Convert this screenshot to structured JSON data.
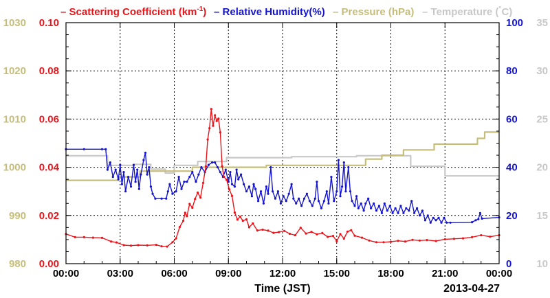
{
  "chart_data": {
    "type": "line",
    "legend": {
      "position": "top",
      "items": [
        {
          "text": "Scattering Coefficient (km",
          "sup": "-1",
          "tail": ")",
          "color": "#e8141a"
        },
        {
          "text": "Relative Humidity(%)",
          "color": "#1414d2"
        },
        {
          "text": "Pressure (hPa)",
          "color": "#c6bd78"
        },
        {
          "text": "Temperature (",
          "sup": "°",
          "tail": "C)",
          "color": "#c8c8c8"
        }
      ]
    },
    "xlabel": "Time (JST)",
    "date_label": "2013-04-27",
    "x_range_hours": [
      0,
      24
    ],
    "x_ticks": [
      {
        "h": 0,
        "label": "00:00"
      },
      {
        "h": 3,
        "label": "03:00"
      },
      {
        "h": 6,
        "label": "06:00"
      },
      {
        "h": 9,
        "label": "09:00"
      },
      {
        "h": 12,
        "label": "12:00"
      },
      {
        "h": 15,
        "label": "15:00"
      },
      {
        "h": 18,
        "label": "18:00"
      },
      {
        "h": 21,
        "label": "21:00"
      },
      {
        "h": 24,
        "label": "00:00"
      }
    ],
    "grid": true,
    "axes": {
      "pressure": {
        "side": "left-outer",
        "ylim": [
          980,
          1030
        ],
        "ticks": [
          "980",
          "990",
          "1000",
          "1010",
          "1020",
          "1030"
        ],
        "color": "#c6bd78"
      },
      "scattering": {
        "side": "left-inner",
        "ylim": [
          0,
          0.1
        ],
        "ticks": [
          "0.00",
          "0.02",
          "0.04",
          "0.06",
          "0.08",
          "0.10"
        ],
        "color": "#e8141a"
      },
      "humidity": {
        "side": "right-inner",
        "ylim": [
          0,
          100
        ],
        "ticks": [
          "0",
          "20",
          "40",
          "60",
          "80",
          "100"
        ],
        "color": "#1414d2"
      },
      "temperature": {
        "side": "right-outer",
        "ylim": [
          10,
          35
        ],
        "ticks": [
          "10",
          "15",
          "20",
          "25",
          "30",
          "35"
        ],
        "color": "#c8c8c8"
      }
    },
    "series": [
      {
        "name": "Temperature",
        "axis": "temperature",
        "color": "#c8c8c8",
        "step": true,
        "points": [
          [
            0,
            21.2
          ],
          [
            2.2,
            21.2
          ],
          [
            2.3,
            20.2
          ],
          [
            3.7,
            20.2
          ],
          [
            3.8,
            20.3
          ],
          [
            4.6,
            20.3
          ],
          [
            4.7,
            19.8
          ],
          [
            5.4,
            19.8
          ],
          [
            5.5,
            19.4
          ],
          [
            5.9,
            19.4
          ],
          [
            6.0,
            20.2
          ],
          [
            7.2,
            20.2
          ],
          [
            7.3,
            20.6
          ],
          [
            8.8,
            20.6
          ],
          [
            8.9,
            21.0
          ],
          [
            12.4,
            21.0
          ],
          [
            12.5,
            21.1
          ],
          [
            16.0,
            21.1
          ],
          [
            16.1,
            21.2
          ],
          [
            19.0,
            21.2
          ],
          [
            19.1,
            20.1
          ],
          [
            20.9,
            20.1
          ],
          [
            21.0,
            19.1
          ],
          [
            24,
            19.1
          ]
        ]
      },
      {
        "name": "Pressure",
        "axis": "pressure",
        "color": "#c6bd78",
        "step": true,
        "points": [
          [
            0,
            997.3
          ],
          [
            2.8,
            997.3
          ],
          [
            2.9,
            998.0
          ],
          [
            4.0,
            998.0
          ],
          [
            4.1,
            999.2
          ],
          [
            6.9,
            999.2
          ],
          [
            7.0,
            1000.0
          ],
          [
            11.0,
            1000.0
          ],
          [
            11.1,
            1000.4
          ],
          [
            16.5,
            1000.4
          ],
          [
            16.6,
            1001.7
          ],
          [
            17.4,
            1001.7
          ],
          [
            17.5,
            1002.5
          ],
          [
            18.6,
            1002.5
          ],
          [
            18.7,
            1003.6
          ],
          [
            20.3,
            1003.6
          ],
          [
            20.4,
            1004.8
          ],
          [
            22.7,
            1004.8
          ],
          [
            22.8,
            1006.0
          ],
          [
            23.1,
            1006.0
          ],
          [
            23.2,
            1007.3
          ],
          [
            24,
            1007.3
          ]
        ]
      },
      {
        "name": "Relative Humidity",
        "axis": "humidity",
        "color": "#1414d2",
        "step": false,
        "points": [
          [
            0,
            47.5
          ],
          [
            1,
            47.5
          ],
          [
            2.0,
            47.5
          ],
          [
            2.2,
            47.5
          ],
          [
            2.3,
            39
          ],
          [
            2.45,
            42
          ],
          [
            2.6,
            36
          ],
          [
            2.75,
            39
          ],
          [
            2.9,
            35
          ],
          [
            3.0,
            41
          ],
          [
            3.1,
            33
          ],
          [
            3.2,
            38
          ],
          [
            3.3,
            30
          ],
          [
            3.45,
            36
          ],
          [
            3.6,
            32
          ],
          [
            3.75,
            41
          ],
          [
            3.85,
            34
          ],
          [
            3.95,
            39
          ],
          [
            4.05,
            31
          ],
          [
            4.15,
            37
          ],
          [
            4.3,
            43
          ],
          [
            4.4,
            46
          ],
          [
            4.5,
            37
          ],
          [
            4.6,
            40
          ],
          [
            4.7,
            32
          ],
          [
            4.8,
            29
          ],
          [
            4.95,
            27
          ],
          [
            5.3,
            27
          ],
          [
            5.55,
            27
          ],
          [
            5.65,
            30
          ],
          [
            5.75,
            33
          ],
          [
            5.9,
            29
          ],
          [
            6.1,
            30
          ],
          [
            6.25,
            36
          ],
          [
            6.4,
            31
          ],
          [
            6.55,
            34
          ],
          [
            6.7,
            34
          ],
          [
            6.85,
            36
          ],
          [
            7.0,
            38
          ],
          [
            7.2,
            34
          ],
          [
            7.35,
            37
          ],
          [
            7.5,
            40
          ],
          [
            7.7,
            38
          ],
          [
            7.9,
            41
          ],
          [
            8.1,
            42
          ],
          [
            8.25,
            42
          ],
          [
            8.4,
            40
          ],
          [
            8.55,
            38
          ],
          [
            8.7,
            36
          ],
          [
            8.85,
            39
          ],
          [
            9.0,
            34
          ],
          [
            9.1,
            38
          ],
          [
            9.2,
            33
          ],
          [
            9.35,
            32
          ],
          [
            9.45,
            39
          ],
          [
            9.55,
            35
          ],
          [
            9.7,
            37
          ],
          [
            9.85,
            33
          ],
          [
            10.0,
            30
          ],
          [
            10.15,
            32
          ],
          [
            10.3,
            28
          ],
          [
            10.4,
            33
          ],
          [
            10.5,
            31
          ],
          [
            10.65,
            26
          ],
          [
            10.8,
            30
          ],
          [
            10.95,
            25
          ],
          [
            11.1,
            32
          ],
          [
            11.2,
            29
          ],
          [
            11.35,
            40
          ],
          [
            11.45,
            30
          ],
          [
            11.6,
            27
          ],
          [
            11.75,
            30
          ],
          [
            11.9,
            25
          ],
          [
            12.05,
            28
          ],
          [
            12.2,
            26
          ],
          [
            12.35,
            29
          ],
          [
            12.5,
            33
          ],
          [
            12.6,
            27
          ],
          [
            12.75,
            25
          ],
          [
            12.9,
            27
          ],
          [
            13.05,
            24
          ],
          [
            13.2,
            27
          ],
          [
            13.35,
            29
          ],
          [
            13.5,
            26
          ],
          [
            13.65,
            24
          ],
          [
            13.8,
            27
          ],
          [
            13.9,
            34
          ],
          [
            14.0,
            26
          ],
          [
            14.15,
            23
          ],
          [
            14.3,
            26
          ],
          [
            14.45,
            30
          ],
          [
            14.55,
            25
          ],
          [
            14.7,
            36
          ],
          [
            14.85,
            26
          ],
          [
            15.0,
            30
          ],
          [
            15.1,
            43
          ],
          [
            15.2,
            28
          ],
          [
            15.3,
            32
          ],
          [
            15.4,
            42
          ],
          [
            15.5,
            30
          ],
          [
            15.65,
            40
          ],
          [
            15.75,
            30
          ],
          [
            15.85,
            26
          ],
          [
            16.0,
            24
          ],
          [
            16.1,
            28
          ],
          [
            16.2,
            23
          ],
          [
            16.35,
            25
          ],
          [
            16.5,
            22
          ],
          [
            16.6,
            25
          ],
          [
            16.75,
            27
          ],
          [
            16.9,
            23
          ],
          [
            17.05,
            25
          ],
          [
            17.2,
            22
          ],
          [
            17.35,
            24
          ],
          [
            17.5,
            21
          ],
          [
            17.65,
            25
          ],
          [
            17.8,
            22
          ],
          [
            17.95,
            24
          ],
          [
            18.1,
            21
          ],
          [
            18.25,
            23
          ],
          [
            18.4,
            21
          ],
          [
            18.55,
            24
          ],
          [
            18.7,
            21
          ],
          [
            18.85,
            23
          ],
          [
            19.0,
            22
          ],
          [
            19.15,
            26
          ],
          [
            19.3,
            21
          ],
          [
            19.45,
            23
          ],
          [
            19.6,
            20
          ],
          [
            19.75,
            22
          ],
          [
            19.9,
            18
          ],
          [
            20.05,
            20
          ],
          [
            20.2,
            17
          ],
          [
            20.35,
            19
          ],
          [
            20.5,
            18
          ],
          [
            20.65,
            19
          ],
          [
            20.8,
            17
          ],
          [
            20.95,
            19
          ],
          [
            21.1,
            17
          ],
          [
            21.3,
            17
          ],
          [
            22.5,
            17.2
          ],
          [
            22.7,
            18
          ],
          [
            22.85,
            18.5
          ],
          [
            22.95,
            21
          ],
          [
            23.05,
            18.7
          ],
          [
            24,
            19.2
          ]
        ]
      },
      {
        "name": "Scattering Coefficient",
        "axis": "scattering",
        "color": "#e8141a",
        "step": false,
        "points": [
          [
            0,
            0.0123
          ],
          [
            0.5,
            0.011
          ],
          [
            1.0,
            0.011
          ],
          [
            1.5,
            0.0108
          ],
          [
            2.0,
            0.0107
          ],
          [
            2.5,
            0.0092
          ],
          [
            2.8,
            0.0088
          ],
          [
            3.2,
            0.0077
          ],
          [
            3.6,
            0.0075
          ],
          [
            4.0,
            0.0077
          ],
          [
            4.5,
            0.0076
          ],
          [
            5.0,
            0.0078
          ],
          [
            5.3,
            0.0072
          ],
          [
            5.6,
            0.0071
          ],
          [
            5.9,
            0.0089
          ],
          [
            6.1,
            0.0105
          ],
          [
            6.3,
            0.0152
          ],
          [
            6.5,
            0.0178
          ],
          [
            6.6,
            0.0211
          ],
          [
            6.7,
            0.0197
          ],
          [
            6.85,
            0.0248
          ],
          [
            7.0,
            0.0232
          ],
          [
            7.15,
            0.0268
          ],
          [
            7.3,
            0.0295
          ],
          [
            7.45,
            0.0274
          ],
          [
            7.6,
            0.0335
          ],
          [
            7.75,
            0.0404
          ],
          [
            7.85,
            0.0515
          ],
          [
            7.95,
            0.0562
          ],
          [
            8.05,
            0.0642
          ],
          [
            8.15,
            0.0572
          ],
          [
            8.25,
            0.0616
          ],
          [
            8.35,
            0.0592
          ],
          [
            8.45,
            0.0602
          ],
          [
            8.55,
            0.0545
          ],
          [
            8.65,
            0.0404
          ],
          [
            8.75,
            0.0361
          ],
          [
            8.9,
            0.0348
          ],
          [
            9.05,
            0.0308
          ],
          [
            9.2,
            0.0281
          ],
          [
            9.35,
            0.0212
          ],
          [
            9.5,
            0.0183
          ],
          [
            9.65,
            0.0195
          ],
          [
            9.8,
            0.0178
          ],
          [
            10.0,
            0.0184
          ],
          [
            10.15,
            0.0151
          ],
          [
            10.35,
            0.0167
          ],
          [
            10.6,
            0.0138
          ],
          [
            10.9,
            0.0141
          ],
          [
            11.2,
            0.0137
          ],
          [
            11.5,
            0.0128
          ],
          [
            11.8,
            0.0131
          ],
          [
            12.1,
            0.0136
          ],
          [
            12.4,
            0.0124
          ],
          [
            12.7,
            0.0118
          ],
          [
            13.0,
            0.0149
          ],
          [
            13.3,
            0.0125
          ],
          [
            13.6,
            0.0132
          ],
          [
            13.9,
            0.0122
          ],
          [
            14.2,
            0.0127
          ],
          [
            14.5,
            0.0111
          ],
          [
            14.8,
            0.0115
          ],
          [
            15.0,
            0.0093
          ],
          [
            15.2,
            0.0123
          ],
          [
            15.4,
            0.0104
          ],
          [
            15.6,
            0.0133
          ],
          [
            15.8,
            0.0139
          ],
          [
            16.0,
            0.0116
          ],
          [
            16.4,
            0.0108
          ],
          [
            16.8,
            0.0096
          ],
          [
            17.2,
            0.0089
          ],
          [
            17.6,
            0.0089
          ],
          [
            18.0,
            0.0091
          ],
          [
            18.4,
            0.0095
          ],
          [
            18.8,
            0.0092
          ],
          [
            19.2,
            0.0099
          ],
          [
            19.6,
            0.0096
          ],
          [
            20.0,
            0.0098
          ],
          [
            20.5,
            0.0094
          ],
          [
            21.0,
            0.0101
          ],
          [
            21.5,
            0.0103
          ],
          [
            22.0,
            0.0105
          ],
          [
            22.5,
            0.011
          ],
          [
            23.0,
            0.0118
          ],
          [
            23.5,
            0.0112
          ],
          [
            24,
            0.0118
          ]
        ]
      }
    ]
  }
}
